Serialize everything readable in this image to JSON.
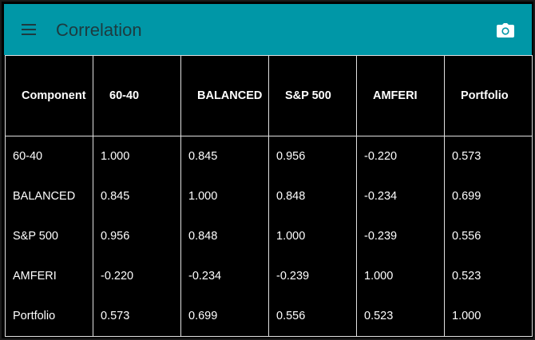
{
  "app": {
    "title": "Correlation"
  },
  "icons": {
    "menu": "menu-icon",
    "camera": "camera-icon"
  },
  "colors": {
    "appbar": "#0097a7",
    "background": "#000000",
    "text": "#ffffff"
  },
  "table": {
    "headers": [
      "Component",
      "60-40",
      "BALANCED",
      "S&P 500",
      "AMFERI",
      "Portfolio"
    ],
    "rows": [
      [
        "60-40",
        "1.000",
        "0.845",
        "0.956",
        "-0.220",
        "0.573"
      ],
      [
        "BALANCED",
        "0.845",
        "1.000",
        "0.848",
        "-0.234",
        "0.699"
      ],
      [
        "S&P 500",
        "0.956",
        "0.848",
        "1.000",
        "-0.239",
        "0.556"
      ],
      [
        "AMFERI",
        "-0.220",
        "-0.234",
        "-0.239",
        "1.000",
        "0.523"
      ],
      [
        "Portfolio",
        "0.573",
        "0.699",
        "0.556",
        "0.523",
        "1.000"
      ]
    ]
  }
}
